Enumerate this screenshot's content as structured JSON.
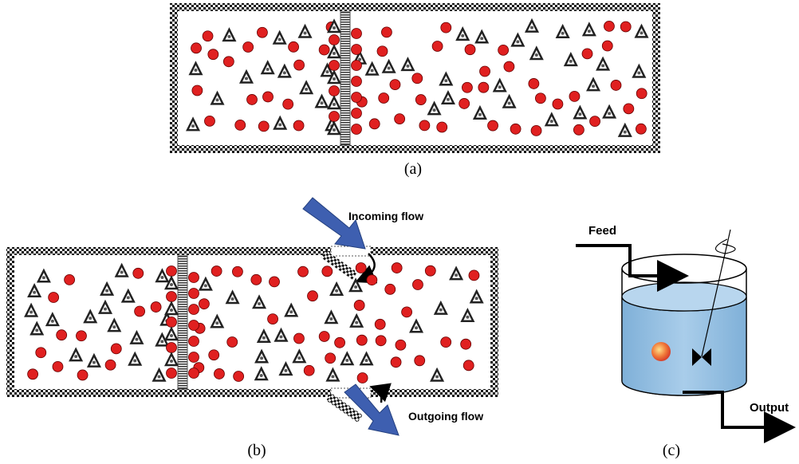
{
  "panels": [
    {
      "label": "(a)"
    },
    {
      "label": "(b)",
      "annotations": [
        "Incoming flow",
        "Outgoing flow"
      ]
    },
    {
      "label": "(c)",
      "annotations": [
        "Feed",
        "Output"
      ]
    }
  ]
}
